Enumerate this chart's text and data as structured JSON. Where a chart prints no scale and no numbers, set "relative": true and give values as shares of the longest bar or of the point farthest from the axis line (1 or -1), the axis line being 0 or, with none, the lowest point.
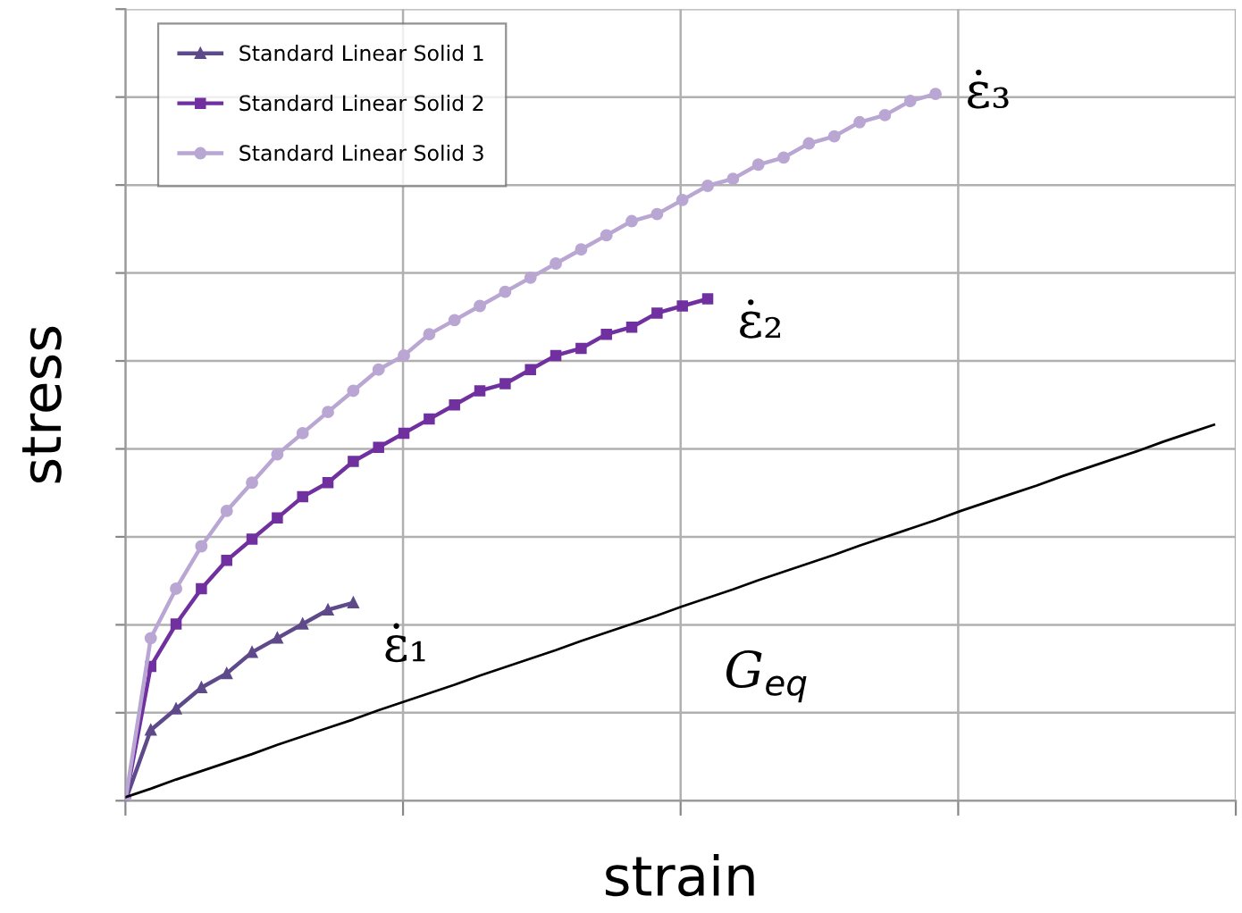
{
  "chart_data": {
    "type": "line",
    "relative": true,
    "xlabel": "strain",
    "ylabel": "stress",
    "grid": true,
    "legend": "top left",
    "categories": [
      null,
      null,
      null,
      null,
      null,
      null,
      null,
      null,
      null,
      null,
      null,
      null,
      null,
      null,
      null,
      null,
      null,
      null,
      null,
      null,
      null,
      null,
      null,
      null,
      null,
      null,
      null,
      null,
      null,
      null,
      null,
      null,
      null,
      null,
      null,
      null,
      null,
      null,
      null,
      null,
      null,
      null,
      null,
      null
    ],
    "series": [
      {
        "name": "Standard Linear Solid 1",
        "color": "#5e4a8a",
        "marker": "triangle",
        "values": [
          0,
          0.1,
          0.13,
          0.16,
          0.18,
          0.21,
          0.23,
          0.25,
          0.27,
          0.28,
          null,
          null,
          null,
          null,
          null,
          null,
          null,
          null,
          null,
          null,
          null,
          null,
          null,
          null,
          null,
          null,
          null,
          null,
          null,
          null,
          null,
          null,
          null,
          null,
          null,
          null,
          null,
          null,
          null,
          null,
          null,
          null,
          null,
          null
        ]
      },
      {
        "name": "Standard Linear Solid 2",
        "color": "#7030a0",
        "marker": "square",
        "values": [
          0,
          0.19,
          0.25,
          0.3,
          0.34,
          0.37,
          0.4,
          0.43,
          0.45,
          0.48,
          0.5,
          0.52,
          0.54,
          0.56,
          0.58,
          0.59,
          0.61,
          0.63,
          0.64,
          0.66,
          0.67,
          0.69,
          0.7,
          0.71,
          null,
          null,
          null,
          null,
          null,
          null,
          null,
          null,
          null,
          null,
          null,
          null,
          null,
          null,
          null,
          null,
          null,
          null,
          null,
          null
        ]
      },
      {
        "name": "Standard Linear Solid 3",
        "color": "#b9a6d3",
        "marker": "circle",
        "values": [
          0,
          0.23,
          0.3,
          0.36,
          0.41,
          0.45,
          0.49,
          0.52,
          0.55,
          0.58,
          0.61,
          0.63,
          0.66,
          0.68,
          0.7,
          0.72,
          0.74,
          0.76,
          0.78,
          0.8,
          0.82,
          0.83,
          0.85,
          0.87,
          0.88,
          0.9,
          0.91,
          0.93,
          0.94,
          0.96,
          0.97,
          0.99,
          1,
          null,
          null,
          null,
          null,
          null,
          null,
          null,
          null,
          null,
          null,
          null
        ]
      },
      {
        "color": "#000000",
        "marker": "none",
        "values": [
          0.005,
          0.017,
          0.03,
          0.042,
          0.054,
          0.066,
          0.079,
          0.091,
          0.103,
          0.115,
          0.128,
          0.14,
          0.152,
          0.164,
          0.177,
          0.189,
          0.201,
          0.213,
          0.226,
          0.238,
          0.25,
          0.262,
          0.275,
          0.287,
          0.299,
          0.312,
          0.324,
          0.336,
          0.348,
          0.361,
          0.373,
          0.385,
          0.397,
          0.41,
          0.422,
          0.434,
          0.446,
          0.459,
          0.471,
          0.483,
          0.495,
          0.508,
          0.52,
          0.532
        ]
      }
    ],
    "annotations": [
      "ε̇₁",
      "ε̇₂",
      "ε̇₃",
      "G$_{eq}$"
    ]
  }
}
